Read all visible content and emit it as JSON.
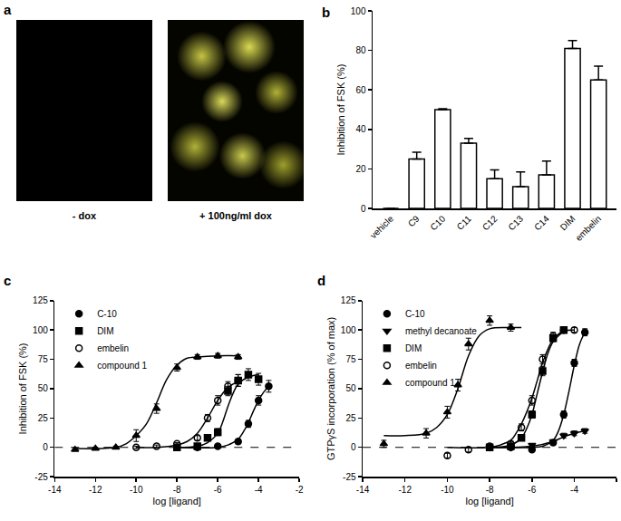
{
  "images": {
    "label": "a",
    "captions": [
      "- dox",
      "+ 100ng/ml dox"
    ]
  },
  "chart_data": [
    {
      "type": "bar",
      "title": "b",
      "y_label": "Inhibition of FSK (%)",
      "categories": [
        "vehicle",
        "C9",
        "C10",
        "C11",
        "C12",
        "C13",
        "C14",
        "DIM",
        "embelin"
      ],
      "values": [
        0,
        25,
        50,
        33,
        15,
        11,
        17,
        81,
        65
      ],
      "errors": [
        0,
        3.5,
        0.5,
        2.5,
        4.5,
        7.5,
        7,
        4,
        7
      ],
      "color": "#ffffff",
      "ylim": [
        0,
        100
      ],
      "yticks": [
        0,
        20,
        40,
        60,
        80,
        100
      ],
      "grid": false
    },
    {
      "type": "scatter",
      "title": "c",
      "x_label": "log [ligand]",
      "y_label": "Inhibition of FSK (%)",
      "xlim": [
        -14,
        -2
      ],
      "xticks": [
        -14,
        -12,
        -10,
        -8,
        -6,
        -4,
        -2
      ],
      "ylim": [
        -25,
        125
      ],
      "yticks": [
        -25,
        0,
        25,
        50,
        75,
        100,
        125
      ],
      "hline": 0,
      "legend": "upper left",
      "grid": false,
      "series": [
        {
          "name": "C-10",
          "color": "#000000",
          "marker": "circle",
          "x": [
            -8,
            -7,
            -6,
            -5,
            -4.5,
            -4,
            -3.5
          ],
          "values": [
            0,
            0,
            1,
            5,
            20,
            40,
            52
          ],
          "errors": [
            1,
            1,
            1,
            2,
            3,
            4,
            5
          ],
          "fit": {
            "x": [
              -8,
              -6,
              -5.5,
              -5,
              -4.75,
              -4.5,
              -4.25,
              -4,
              -3.75,
              -3.5
            ],
            "values": [
              0,
              0,
              2,
              7,
              13,
              21,
              31,
              40,
              47,
              52
            ]
          }
        },
        {
          "name": "DIM",
          "color": "#000000",
          "marker": "square",
          "x": [
            -8,
            -7,
            -6.5,
            -6,
            -5.5,
            -5,
            -4.5,
            -4
          ],
          "values": [
            0,
            1,
            8,
            13,
            48,
            57,
            62,
            58
          ],
          "errors": [
            1,
            1,
            2,
            3,
            4,
            5,
            5,
            5
          ],
          "fit": {
            "x": [
              -8,
              -7,
              -6.5,
              -6,
              -5.75,
              -5.5,
              -5.25,
              -5,
              -4.5,
              -4
            ],
            "values": [
              0,
              1,
              4,
              12,
              22,
              35,
              46,
              54,
              60,
              62
            ]
          }
        },
        {
          "name": "embelin",
          "color": "#000000",
          "marker": "circle-open",
          "x": [
            -10,
            -9,
            -8,
            -7,
            -6.5,
            -6,
            -5.5,
            -5
          ],
          "values": [
            0,
            1,
            3,
            8,
            25,
            40,
            52,
            57
          ],
          "errors": [
            1,
            1,
            1,
            2,
            3,
            4,
            4,
            5
          ],
          "fit": {
            "x": [
              -10,
              -9,
              -8,
              -7.5,
              -7,
              -6.5,
              -6,
              -5.5,
              -5
            ],
            "values": [
              0,
              0,
              2,
              5,
              12,
              25,
              40,
              51,
              56
            ]
          }
        },
        {
          "name": "compound 1",
          "color": "#000000",
          "marker": "triangle-up",
          "x": [
            -13,
            -12,
            -11,
            -10,
            -9,
            -8,
            -7,
            -6,
            -5
          ],
          "values": [
            -2,
            -1,
            0,
            10,
            33,
            68,
            77,
            78,
            77
          ],
          "errors": [
            1,
            1,
            1,
            5,
            4,
            3,
            2,
            2,
            2
          ],
          "fit": {
            "x": [
              -13,
              -11,
              -10.5,
              -10,
              -9.5,
              -9,
              -8.5,
              -8,
              -7.5,
              -7,
              -6,
              -5
            ],
            "values": [
              -1,
              0,
              3,
              10,
              20,
              38,
              58,
              70,
              76,
              77,
              78,
              78
            ]
          }
        }
      ]
    },
    {
      "type": "scatter",
      "title": "d",
      "x_label": "log [ligand]",
      "y_label": "GTPγS incorporation (% of max)",
      "xlim": [
        -14,
        -2
      ],
      "xticks": [
        -14,
        -12,
        -10,
        -8,
        -6,
        -4,
        -2
      ],
      "ylim": [
        -25,
        125
      ],
      "yticks": [
        -25,
        0,
        25,
        50,
        75,
        100,
        125
      ],
      "hline": 0,
      "legend": "upper left",
      "grid": false,
      "series": [
        {
          "name": "C-10",
          "color": "#000000",
          "marker": "circle",
          "x": [
            -8,
            -7,
            -6,
            -5,
            -4.5,
            -4,
            -3.5
          ],
          "values": [
            0,
            0,
            -2,
            4,
            28,
            72,
            98
          ],
          "errors": [
            1,
            1,
            1,
            2,
            3,
            3,
            3
          ],
          "fit": {
            "x": [
              -8,
              -6,
              -5.5,
              -5,
              -4.75,
              -4.5,
              -4.25,
              -4,
              -3.75,
              -3.5
            ],
            "values": [
              0,
              0,
              1,
              6,
              14,
              28,
              48,
              70,
              88,
              98
            ]
          }
        },
        {
          "name": "methyl decanoate",
          "color": "#000000",
          "marker": "triangle-down",
          "x": [
            -8,
            -7,
            -6,
            -5,
            -4.5,
            -4,
            -3.5
          ],
          "values": [
            0,
            0,
            2,
            5,
            10,
            12,
            14
          ],
          "errors": [
            1,
            1,
            1,
            1,
            2,
            2,
            2
          ],
          "fit": {
            "x": [
              -8,
              -6,
              -5,
              -4.5,
              -4,
              -3.5
            ],
            "values": [
              0,
              1,
              5,
              9,
              12,
              14
            ]
          }
        },
        {
          "name": "DIM",
          "color": "#000000",
          "marker": "square",
          "x": [
            -8,
            -7,
            -6.5,
            -6,
            -5.5,
            -5,
            -4.5
          ],
          "values": [
            0,
            1,
            8,
            28,
            65,
            93,
            100
          ],
          "errors": [
            1,
            1,
            2,
            3,
            4,
            3,
            2
          ],
          "fit": {
            "x": [
              -8,
              -7,
              -6.5,
              -6.25,
              -6,
              -5.75,
              -5.5,
              -5.25,
              -5,
              -4.5
            ],
            "values": [
              0,
              2,
              8,
              16,
              28,
              46,
              64,
              80,
              90,
              99
            ]
          }
        },
        {
          "name": "embelin",
          "color": "#000000",
          "marker": "circle-open",
          "x": [
            -10,
            -9,
            -8,
            -7,
            -6.5,
            -6,
            -5.5,
            -5,
            -4.5,
            -4
          ],
          "values": [
            -7,
            -2,
            1,
            3,
            17,
            40,
            75,
            95,
            100,
            100
          ],
          "errors": [
            2,
            2,
            1,
            2,
            3,
            4,
            4,
            3,
            2,
            2
          ],
          "fit": {
            "x": [
              -10,
              -8,
              -7.5,
              -7,
              -6.75,
              -6.5,
              -6.25,
              -6,
              -5.75,
              -5.5,
              -5,
              -4.5,
              -4
            ],
            "values": [
              0,
              0,
              2,
              6,
              12,
              20,
              30,
              42,
              57,
              72,
              92,
              99,
              100
            ]
          }
        },
        {
          "name": "compound 1",
          "color": "#000000",
          "marker": "triangle-up",
          "x": [
            -13,
            -11,
            -10,
            -9.5,
            -9,
            -8,
            -7
          ],
          "values": [
            3,
            12,
            30,
            53,
            88,
            108,
            102
          ],
          "errors": [
            3,
            4,
            5,
            5,
            5,
            4,
            3
          ],
          "fit": {
            "x": [
              -13,
              -12,
              -11,
              -10.5,
              -10,
              -9.5,
              -9,
              -8.5,
              -8,
              -7,
              -6.5
            ],
            "values": [
              10,
              10,
              12,
              17,
              28,
              50,
              78,
              95,
              101,
              102,
              102
            ]
          }
        }
      ]
    }
  ]
}
